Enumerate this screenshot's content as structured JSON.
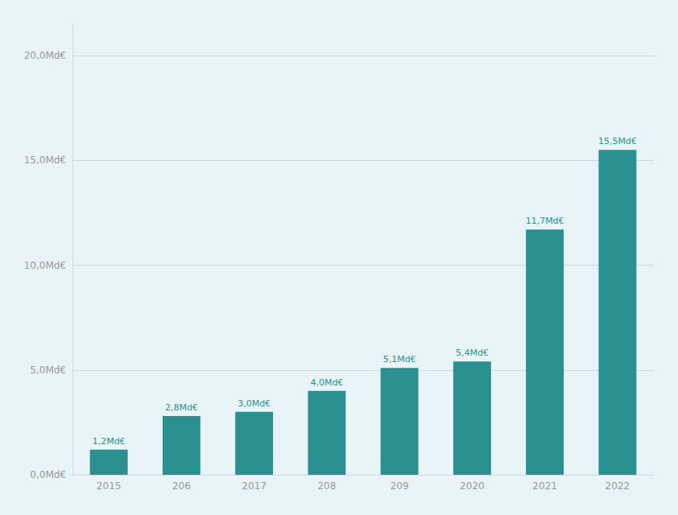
{
  "chart_data": {
    "type": "bar",
    "categories": [
      "2015",
      "20⁢6",
      "2017",
      "20⁢8",
      "20⁢9",
      "2020",
      "2021",
      "2022"
    ],
    "values": [
      1.2,
      2.8,
      3.0,
      4.0,
      5.1,
      5.4,
      11.7,
      15.5
    ],
    "value_labels": [
      "1,2Md€",
      "2,8Md€",
      "3,0Md€",
      "4,0Md€",
      "5,1Md€",
      "5,4Md€",
      "11,7Md€",
      "15,5Md€"
    ],
    "color": "#2a9090",
    "ylim": [
      0,
      21.5
    ],
    "yticks": [
      {
        "value": 0,
        "label": "0,0Md€"
      },
      {
        "value": 5,
        "label": "5,0Md€"
      },
      {
        "value": 10,
        "label": "10,0Md€"
      },
      {
        "value": 15,
        "label": "15,0Md€"
      },
      {
        "value": 20,
        "label": "20,0Md€"
      }
    ],
    "grid": true
  }
}
